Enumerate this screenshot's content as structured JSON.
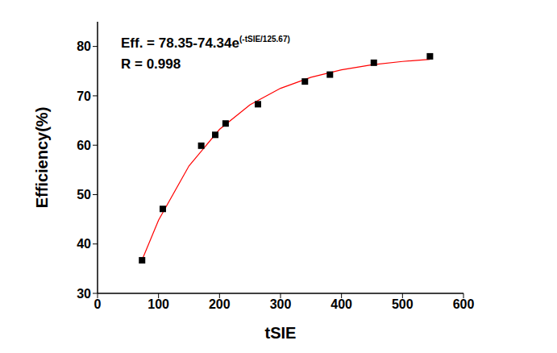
{
  "chart_data": {
    "type": "scatter",
    "x_label": "tSIE",
    "y_label": "Efficiency(%)",
    "xlim": [
      0,
      600
    ],
    "xticks": [
      0,
      100,
      200,
      300,
      400,
      500,
      600
    ],
    "ylim": [
      30,
      85
    ],
    "yticks": [
      30,
      40,
      50,
      60,
      70,
      80
    ],
    "grid": false,
    "annotations": [
      {
        "text": "Eff. = 78.35-74.34e",
        "superscript": "(-tSIE/125.67)"
      },
      {
        "text": "R = 0.998"
      }
    ],
    "series": [
      {
        "type": "line",
        "color": "#ff0000",
        "line_style": "solid",
        "x": [
          73,
          100,
          150,
          200,
          250,
          300,
          350,
          400,
          450,
          500,
          545
        ],
        "values": [
          36.76,
          44.81,
          55.82,
          63.21,
          68.18,
          71.52,
          73.76,
          75.27,
          76.28,
          76.96,
          77.38
        ]
      },
      {
        "type": "scatter",
        "color": "#000000",
        "marker": "square",
        "x": [
          73,
          107,
          170,
          193,
          210,
          263,
          340,
          381,
          453,
          545
        ],
        "values": [
          36.7,
          47.1,
          59.9,
          62.1,
          64.4,
          68.3,
          72.9,
          74.3,
          76.7,
          78.0
        ]
      }
    ]
  }
}
